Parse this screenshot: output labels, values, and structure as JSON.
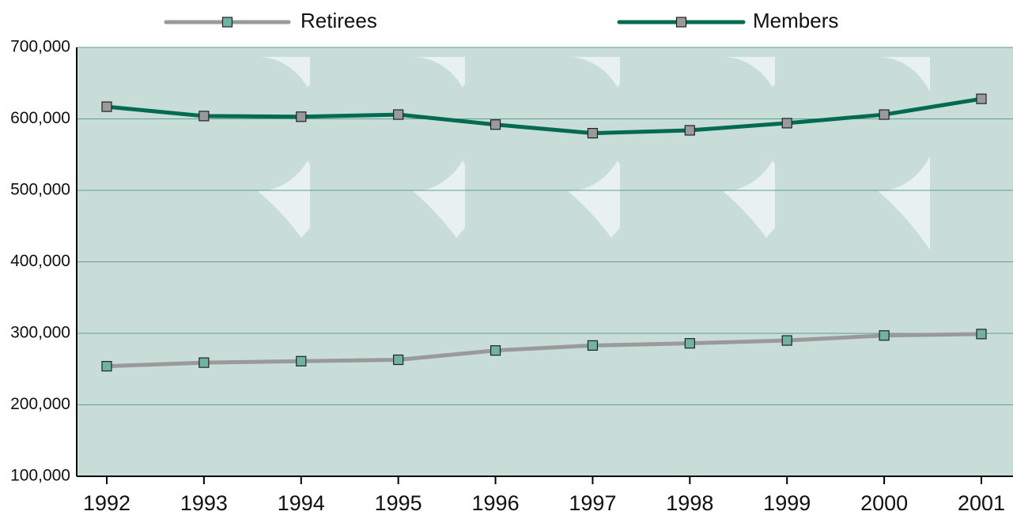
{
  "chart_data": {
    "type": "line",
    "categories": [
      "1992",
      "1993",
      "1994",
      "1995",
      "1996",
      "1997",
      "1998",
      "1999",
      "2000",
      "2001"
    ],
    "series": [
      {
        "name": "Retirees",
        "color": "#9a9a9a",
        "marker_color": "#6fb3a3",
        "values": [
          254000,
          259000,
          261000,
          263000,
          276000,
          283000,
          286000,
          290000,
          297000,
          299000
        ]
      },
      {
        "name": "Members",
        "color": "#006b52",
        "marker_color": "#9a9a9a",
        "values": [
          617000,
          604000,
          603000,
          606000,
          592000,
          580000,
          584000,
          594000,
          606000,
          628000
        ]
      }
    ],
    "ylim": [
      100000,
      700000
    ],
    "yticks": [
      {
        "value": 100000,
        "label": "100,000"
      },
      {
        "value": 200000,
        "label": "200,000"
      },
      {
        "value": 300000,
        "label": "300,000"
      },
      {
        "value": 400000,
        "label": "400,000"
      },
      {
        "value": 500000,
        "label": "500,000"
      },
      {
        "value": 600000,
        "label": "600,000"
      },
      {
        "value": 700000,
        "label": "700,000"
      }
    ],
    "grid": true,
    "legend": "top"
  }
}
